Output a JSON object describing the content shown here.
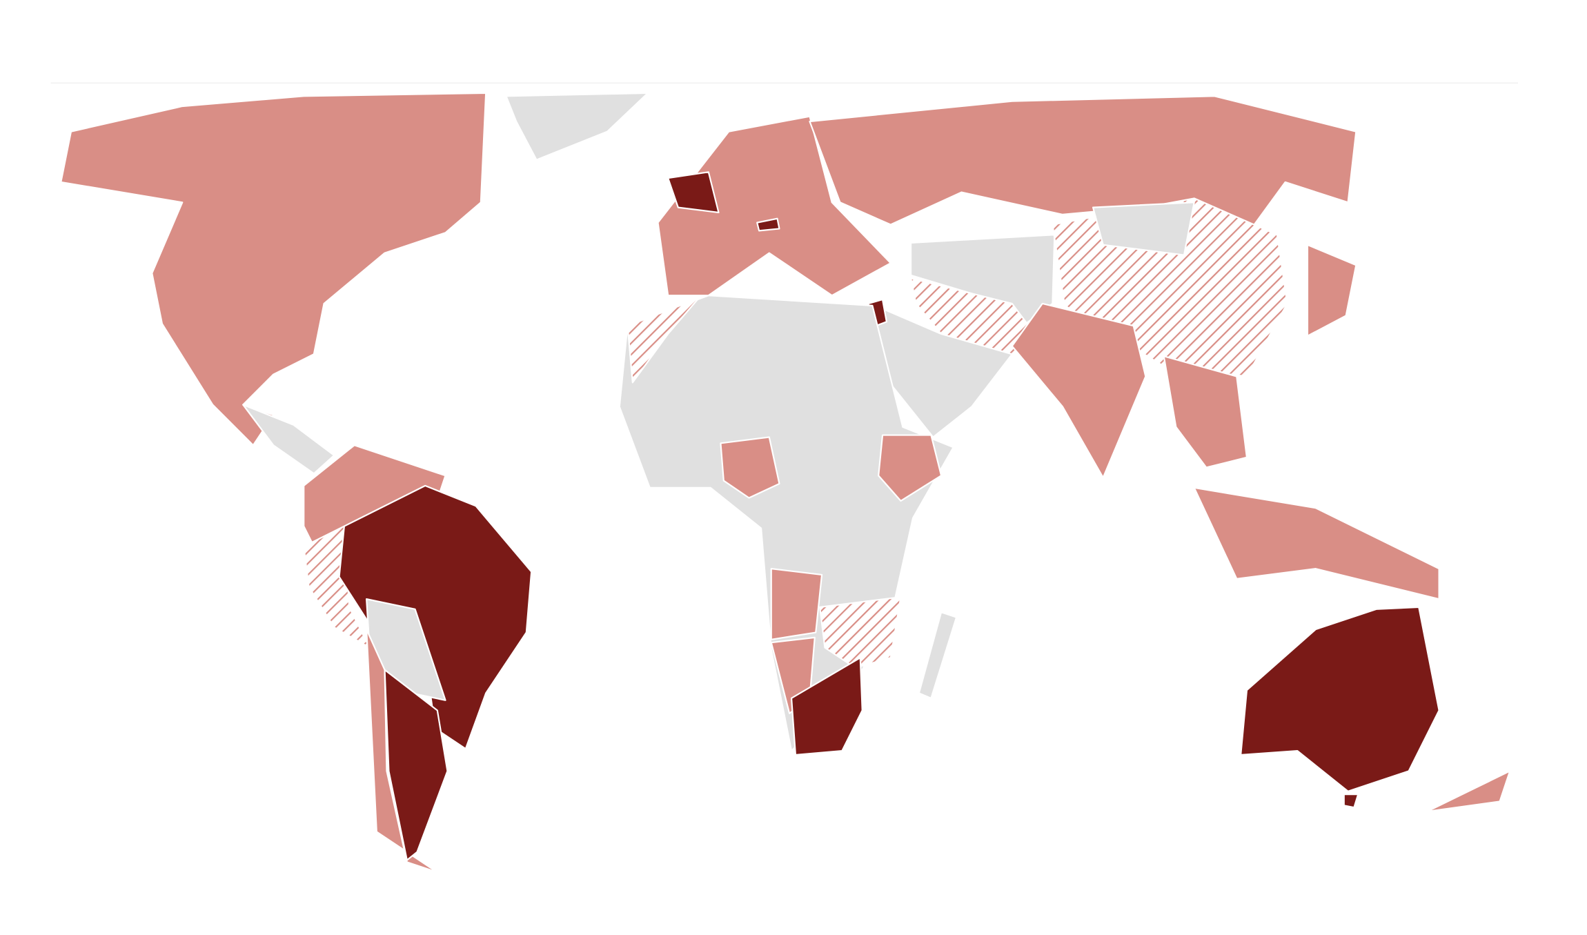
{
  "map": {
    "colors": {
      "dark": "#7a1a17",
      "light": "#d98e86",
      "none": "#e0e0e0",
      "background": "#ffffff"
    }
  }
}
